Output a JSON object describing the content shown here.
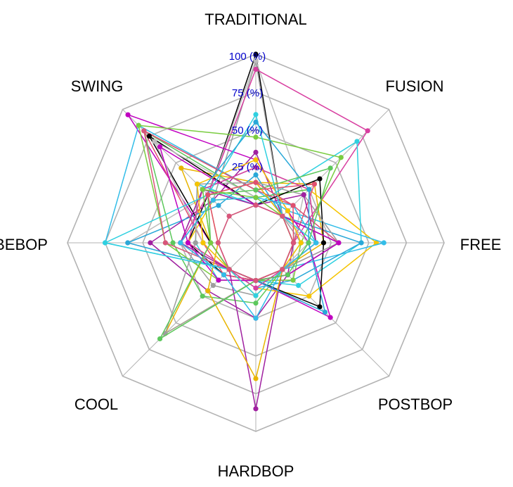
{
  "chart_data": {
    "type": "radar",
    "axes": [
      "TRADITIONAL",
      "FUSION",
      "FREE",
      "POSTBOP",
      "HARDBOP",
      "COOL",
      "BEBOP",
      "SWING"
    ],
    "ticks": [
      "100 (%)",
      "75 (%)",
      "50 (%)",
      "25 (%)"
    ],
    "tick_values": [
      100,
      75,
      50,
      25
    ],
    "range": [
      -25,
      100
    ],
    "grid_levels": [
      0,
      25,
      50,
      75,
      100
    ],
    "grid": true,
    "legend": "none",
    "colors": {
      "grid": "#b3b3b3",
      "tick_text": "#0000cc",
      "series": [
        "#000000",
        "#9e9e9e",
        "#bdbdbd",
        "#d83ea0",
        "#c000c0",
        "#a020a0",
        "#e8b400",
        "#f5c400",
        "#2fd0e0",
        "#33bde8",
        "#2aa8d8",
        "#5cc85c",
        "#7acc40",
        "#e05070",
        "#d8557a"
      ]
    },
    "series": [
      {
        "values": [
          100,
          0,
          30,
          5,
          0,
          5,
          20,
          20
        ]
      },
      {
        "values": [
          95,
          0,
          5,
          0,
          10,
          15,
          25,
          15
        ]
      },
      {
        "values": [
          96,
          20,
          0,
          10,
          0,
          0,
          60,
          20
        ]
      },
      {
        "values": [
          90,
          80,
          0,
          5,
          0,
          5,
          25,
          20
        ]
      },
      {
        "values": [
          30,
          5,
          10,
          45,
          0,
          0,
          5,
          95
        ]
      },
      {
        "values": [
          35,
          0,
          0,
          5,
          25,
          20,
          45,
          15
        ]
      },
      {
        "values": [
          15,
          30,
          20,
          0,
          0,
          60,
          5,
          45
        ]
      },
      {
        "values": [
          5,
          25,
          55,
          25,
          5,
          0,
          20,
          15
        ]
      },
      {
        "values": [
          0,
          70,
          45,
          15,
          0,
          10,
          15,
          30
        ]
      },
      {
        "values": [
          10,
          5,
          60,
          0,
          0,
          0,
          75,
          85
        ]
      },
      {
        "values": [
          20,
          0,
          45,
          10,
          5,
          0,
          60,
          10
        ]
      },
      {
        "values": [
          5,
          25,
          15,
          0,
          15,
          25,
          30,
          80
        ]
      },
      {
        "values": [
          45,
          55,
          5,
          10,
          0,
          10,
          35,
          85
        ]
      },
      {
        "values": [
          10,
          30,
          0,
          0,
          0,
          5,
          10,
          80
        ]
      },
      {
        "values": [
          10,
          10,
          30,
          0,
          0,
          0,
          35,
          80
        ]
      },
      {
        "values": [
          0,
          35,
          20,
          35,
          0,
          0,
          5,
          75
        ]
      },
      {
        "values": [
          15,
          20,
          30,
          0,
          0,
          60,
          15,
          30
        ]
      },
      {
        "values": [
          5,
          0,
          10,
          0,
          0,
          0,
          10,
          70
        ]
      },
      {
        "values": [
          25,
          25,
          15,
          0,
          5,
          0,
          20,
          25
        ]
      },
      {
        "values": [
          0,
          0,
          30,
          5,
          0,
          10,
          20,
          65
        ]
      },
      {
        "values": [
          0,
          20,
          15,
          0,
          85,
          0,
          25,
          25
        ]
      },
      {
        "values": [
          15,
          0,
          0,
          0,
          65,
          20,
          0,
          20
        ]
      },
      {
        "values": [
          30,
          5,
          5,
          0,
          10,
          0,
          10,
          30
        ]
      },
      {
        "values": [
          60,
          0,
          15,
          0,
          10,
          0,
          75,
          20
        ]
      },
      {
        "values": [
          5,
          10,
          15,
          0,
          25,
          5,
          25,
          15
        ]
      },
      {
        "values": [
          55,
          25,
          10,
          40,
          0,
          0,
          5,
          25
        ]
      },
      {
        "values": [
          10,
          45,
          10,
          5,
          0,
          65,
          5,
          20
        ]
      },
      {
        "values": [
          5,
          0,
          0,
          0,
          0,
          0,
          5,
          25
        ]
      },
      {
        "values": [
          15,
          10,
          0,
          0,
          0,
          0,
          0,
          20
        ]
      },
      {
        "values": [
          0,
          0,
          0,
          0,
          0,
          0,
          0,
          0
        ]
      }
    ]
  }
}
